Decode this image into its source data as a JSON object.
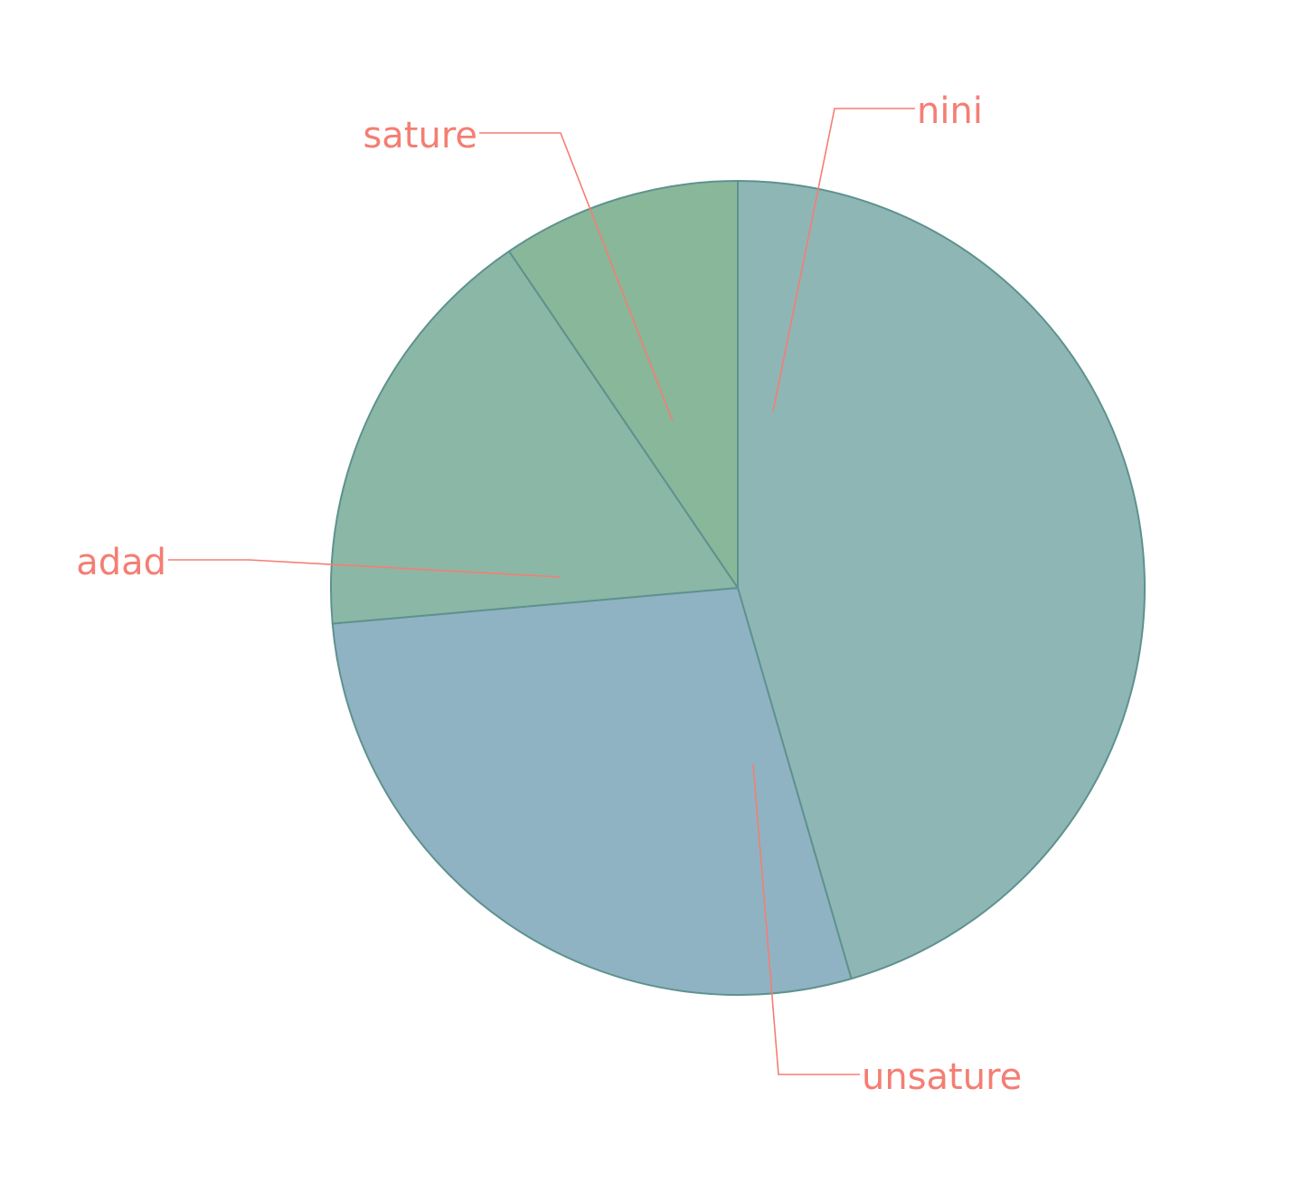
{
  "chart_data": {
    "type": "pie",
    "start_angle_deg": 0,
    "direction": "clockwise",
    "slices": [
      {
        "label": "nini",
        "value": 45.5,
        "color": "#8eb6b5"
      },
      {
        "label": "unsature",
        "value": 28.1,
        "color": "#8fb3c3"
      },
      {
        "label": "adad",
        "value": 16.9,
        "color": "#8bb7a7"
      },
      {
        "label": "sature",
        "value": 9.5,
        "color": "#89b79a"
      }
    ],
    "slice_border_color": "#5e928e",
    "label_color": "#f47e73",
    "title": "",
    "legend": "none"
  }
}
